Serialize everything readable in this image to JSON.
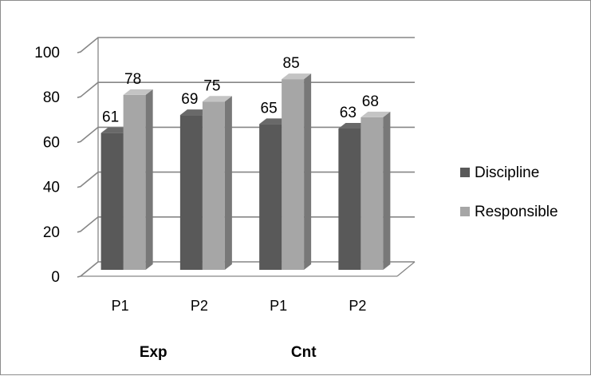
{
  "chart_data": {
    "type": "bar",
    "style": "3d-clustered-column",
    "categories": [
      "P1",
      "P2",
      "P1",
      "P2"
    ],
    "groups": [
      {
        "label": "Exp",
        "categories": [
          0,
          1
        ]
      },
      {
        "label": "Cnt",
        "categories": [
          2,
          3
        ]
      }
    ],
    "series": [
      {
        "name": "Discipline",
        "values": [
          61,
          69,
          65,
          63
        ],
        "color": "#595959"
      },
      {
        "name": "Responsible",
        "values": [
          78,
          75,
          85,
          68
        ],
        "color": "#a6a6a6"
      }
    ],
    "ylim": [
      0,
      100
    ],
    "yticks": [
      0,
      20,
      40,
      60,
      80,
      100
    ],
    "grid": true,
    "data_labels": true,
    "legend": "right",
    "title": "",
    "xlabel": "",
    "ylabel": ""
  }
}
